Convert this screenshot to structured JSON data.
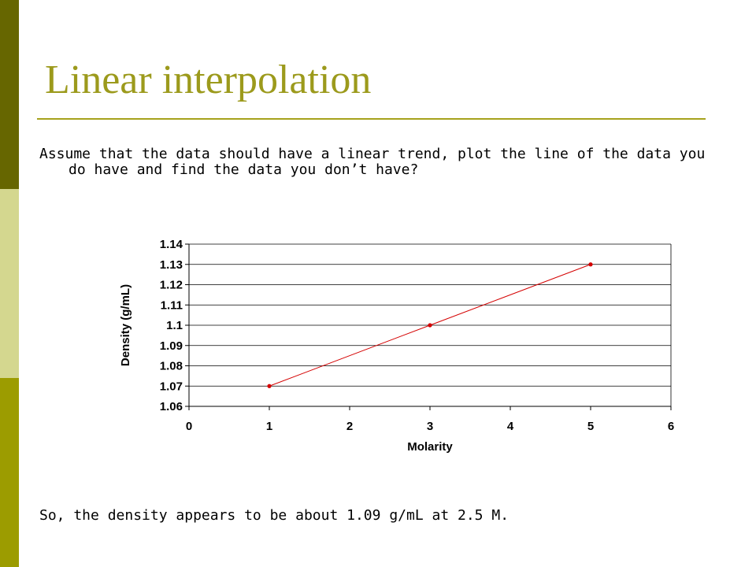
{
  "slide": {
    "title": "Linear interpolation",
    "question": "Assume that the data should have a linear trend, plot the line of the data you do have and find the data you don’t have?",
    "conclusion": "So, the density appears to be about 1.09 g/mL at 2.5 M."
  },
  "colors": {
    "title": "#9c9a1c",
    "rule": "#a6a21c",
    "bar_top": "#666600",
    "bar_middle": "#d4d78f",
    "bar_bottom": "#9c9c00",
    "series": "#d40000",
    "grid": "#000000"
  },
  "chart_data": {
    "type": "scatter",
    "x": [
      1,
      3,
      5
    ],
    "y": [
      1.07,
      1.1,
      1.13
    ],
    "xlabel": "Molarity",
    "ylabel": "Density (g/mL)",
    "xlim": [
      0,
      6
    ],
    "ylim": [
      1.06,
      1.14
    ],
    "xticks": [
      "0",
      "1",
      "2",
      "3",
      "4",
      "5",
      "6"
    ],
    "yticks": [
      "1.06",
      "1.07",
      "1.08",
      "1.09",
      "1.1",
      "1.11",
      "1.12",
      "1.13",
      "1.14"
    ],
    "grid": "horizontal",
    "legend": "none",
    "connect_points": true
  }
}
